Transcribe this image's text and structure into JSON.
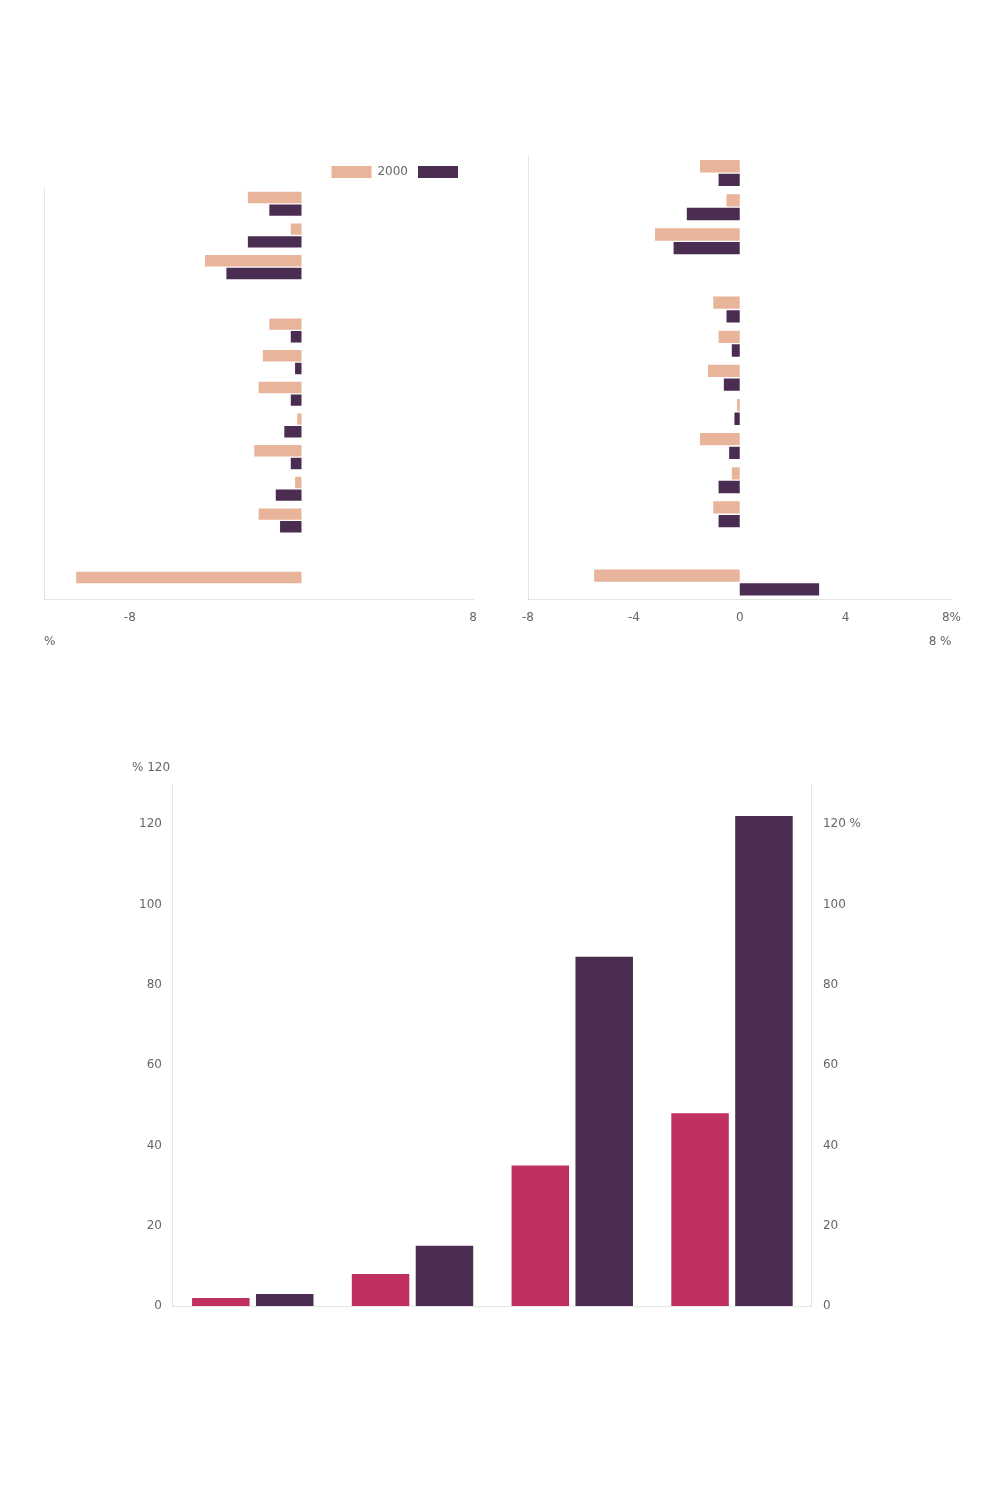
{
  "chart_data": [
    {
      "type": "bar",
      "orientation": "horizontal",
      "categories": [
        null,
        null,
        null,
        null,
        null,
        null,
        null,
        null,
        null,
        null,
        null,
        null,
        null
      ],
      "series": [
        {
          "name": "2000",
          "color": "#e8b49a",
          "values": [
            -10.5,
            0,
            -2.0,
            -0.3,
            -2.2,
            -0.2,
            -2.0,
            -1.8,
            -1.5,
            0,
            -4.5,
            -0.5,
            -2.5
          ]
        },
        {
          "color": "#4a2d50",
          "values": [
            0,
            0,
            -1.0,
            -1.2,
            -0.5,
            -0.8,
            -0.5,
            -0.3,
            -0.5,
            0,
            -3.5,
            -2.5,
            -1.5
          ]
        }
      ],
      "xlim": [
        -12,
        8
      ],
      "xticks": [
        -8,
        {
          "value": 0,
          "label": ""
        },
        8
      ],
      "grid": false,
      "legend": "upper right",
      "tick_labels": "x",
      "annotations": [
        "%"
      ]
    },
    {
      "type": "bar",
      "orientation": "horizontal",
      "categories": [
        null,
        null,
        null,
        null,
        null,
        null,
        null,
        null,
        null,
        null,
        null,
        null,
        null
      ],
      "series": [
        {
          "color": "#e8b49a",
          "values": [
            -5.5,
            0,
            -1.0,
            -0.3,
            -1.5,
            -0.1,
            -1.2,
            -0.8,
            -1.0,
            0,
            -3.2,
            -0.5,
            -1.5
          ]
        },
        {
          "color": "#4a2d50",
          "values": [
            3.0,
            0,
            -0.8,
            -0.8,
            -0.4,
            -0.2,
            -0.6,
            -0.3,
            -0.5,
            0,
            -2.5,
            -2.0,
            -0.8
          ]
        }
      ],
      "xlim": [
        -8,
        8
      ],
      "xticks": [
        -8,
        -4,
        0,
        4,
        {
          "value": 8,
          "label": "8%"
        }
      ],
      "grid": false,
      "tick_labels": "x",
      "annotations": [
        "8 %"
      ]
    },
    {
      "type": "bar",
      "categories": [
        null,
        null,
        null,
        null
      ],
      "series": [
        {
          "color": "#c03060",
          "values": [
            2,
            8,
            35,
            48
          ]
        },
        {
          "color": "#4a2d50",
          "values": [
            3,
            15,
            87,
            122
          ]
        }
      ],
      "ylim": [
        0,
        130
      ],
      "yticks": [
        0,
        20,
        40,
        60,
        80,
        100,
        120
      ],
      "y2lim": [
        0,
        130
      ],
      "y2ticks": [
        0,
        20,
        40,
        60,
        80,
        100,
        {
          "value": 120,
          "label": "120 %"
        }
      ],
      "grid": false,
      "tick_labels": "y",
      "annotations": [
        "% 120"
      ]
    }
  ]
}
